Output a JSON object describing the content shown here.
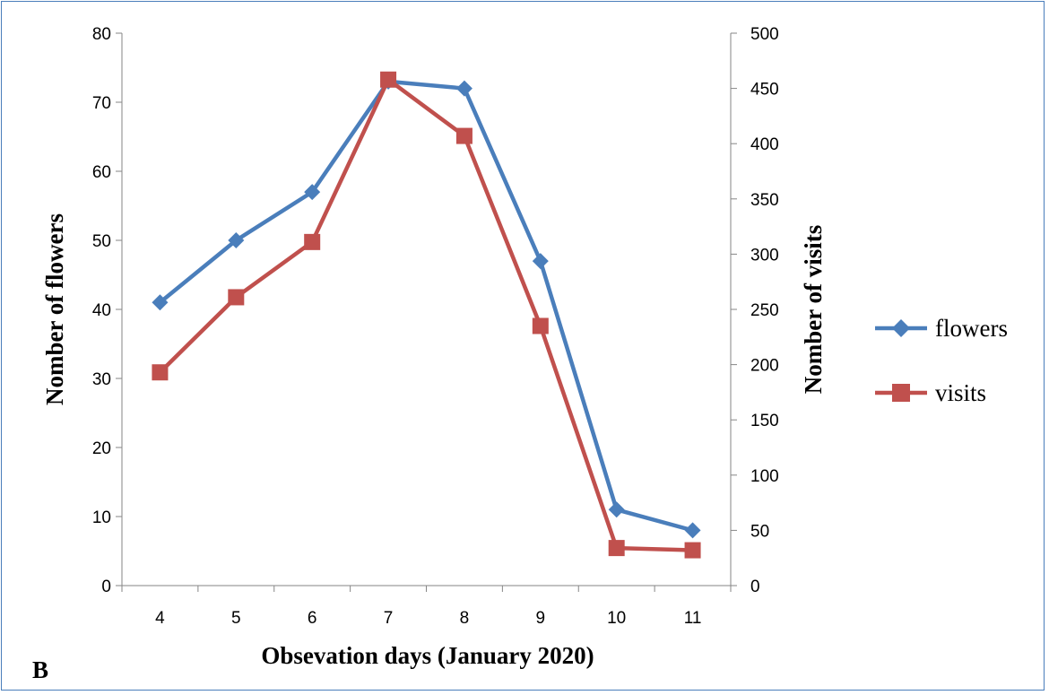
{
  "panel_label": "B",
  "chart_data": {
    "type": "line",
    "xlabel": "Obsevation days (January 2020)",
    "ylabel": "Nomber of flowers",
    "ylabel_right": "Nomber of visits",
    "categories": [
      "4",
      "5",
      "6",
      "7",
      "8",
      "9",
      "10",
      "11"
    ],
    "ylim": [
      0,
      80
    ],
    "yticks": [
      "0",
      "10",
      "20",
      "30",
      "40",
      "50",
      "60",
      "70",
      "80"
    ],
    "ylim_right": [
      0,
      500
    ],
    "yticks_right": [
      "0",
      "50",
      "100",
      "150",
      "200",
      "250",
      "300",
      "350",
      "400",
      "450",
      "500"
    ],
    "grid": false,
    "legend_position": "right",
    "series": [
      {
        "name": "flowers",
        "axis": "left",
        "color": "#4a7ebb",
        "marker": "diamond",
        "values": [
          41,
          50,
          57,
          73,
          72,
          47,
          11,
          8
        ]
      },
      {
        "name": "visits",
        "axis": "right",
        "color": "#c0504d",
        "marker": "square",
        "values": [
          193,
          261,
          311,
          458,
          407,
          235,
          34,
          32
        ]
      }
    ]
  }
}
